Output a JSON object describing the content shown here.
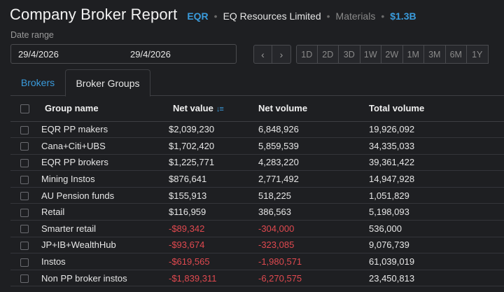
{
  "header": {
    "title": "Company Broker Report",
    "ticker": "EQR",
    "company": "EQ Resources Limited",
    "separator": "•",
    "sector": "Materials",
    "market_cap": "$1.3B"
  },
  "date_range": {
    "label": "Date range",
    "from": "29/4/2026",
    "to": "29/4/2026"
  },
  "nav": {
    "prev": "‹",
    "next": "›"
  },
  "ranges": [
    "1D",
    "2D",
    "3D",
    "1W",
    "2W",
    "1M",
    "3M",
    "6M",
    "1Y"
  ],
  "tabs": {
    "brokers": "Brokers",
    "groups": "Broker Groups"
  },
  "table": {
    "headers": {
      "name": "Group name",
      "net_value": "Net value",
      "net_volume": "Net volume",
      "total_volume": "Total volume"
    },
    "sort_icon": "↓≡",
    "rows": [
      {
        "name": "EQR PP makers",
        "net_value": "$2,039,230",
        "net_volume": "6,848,926",
        "total_volume": "19,926,092",
        "negative": false
      },
      {
        "name": "Cana+Citi+UBS",
        "net_value": "$1,702,420",
        "net_volume": "5,859,539",
        "total_volume": "34,335,033",
        "negative": false
      },
      {
        "name": "EQR PP brokers",
        "net_value": "$1,225,771",
        "net_volume": "4,283,220",
        "total_volume": "39,361,422",
        "negative": false
      },
      {
        "name": "Mining Instos",
        "net_value": "$876,641",
        "net_volume": "2,771,492",
        "total_volume": "14,947,928",
        "negative": false
      },
      {
        "name": "AU Pension funds",
        "net_value": "$155,913",
        "net_volume": "518,225",
        "total_volume": "1,051,829",
        "negative": false
      },
      {
        "name": "Retail",
        "net_value": "$116,959",
        "net_volume": "386,563",
        "total_volume": "5,198,093",
        "negative": false
      },
      {
        "name": "Smarter retail",
        "net_value": "-$89,342",
        "net_volume": "-304,000",
        "total_volume": "536,000",
        "negative": true
      },
      {
        "name": "JP+IB+WealthHub",
        "net_value": "-$93,674",
        "net_volume": "-323,085",
        "total_volume": "9,076,739",
        "negative": true
      },
      {
        "name": "Instos",
        "net_value": "-$619,565",
        "net_volume": "-1,980,571",
        "total_volume": "61,039,019",
        "negative": true
      },
      {
        "name": "Non PP broker instos",
        "net_value": "-$1,839,311",
        "net_volume": "-6,270,575",
        "total_volume": "23,450,813",
        "negative": true
      }
    ]
  },
  "colors": {
    "accent": "#3a9bdc",
    "negative": "#e0494f",
    "background": "#1e1f22"
  }
}
